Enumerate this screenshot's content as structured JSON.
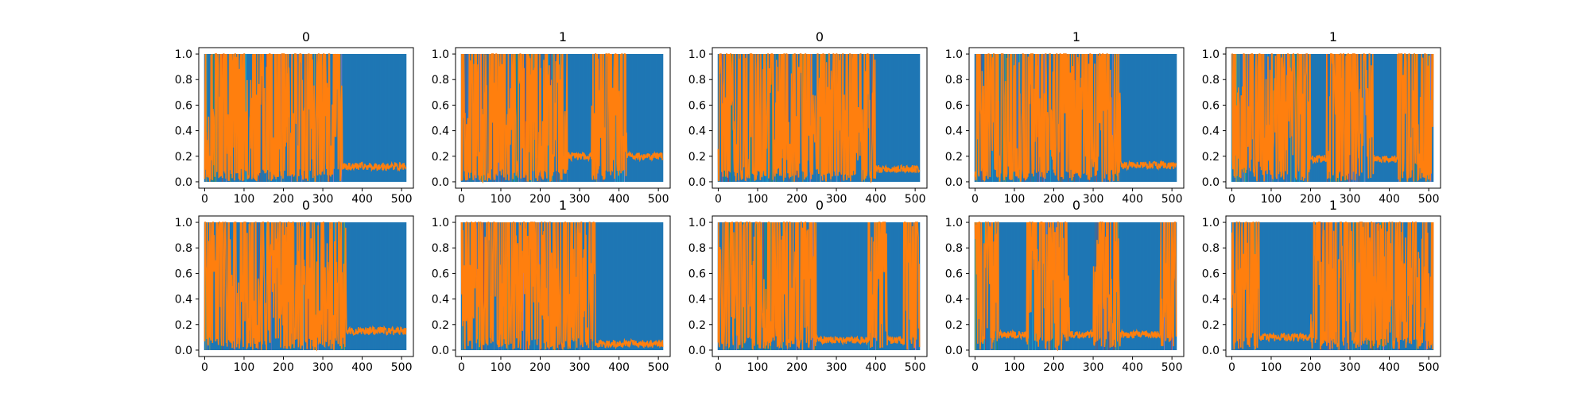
{
  "chart_data": [
    {
      "type": "line",
      "title": "0",
      "xlim": [
        -15,
        530
      ],
      "ylim": [
        -0.05,
        1.05
      ],
      "xticks": [
        0,
        100,
        200,
        300,
        400,
        500
      ],
      "yticks": [
        0.0,
        0.2,
        0.4,
        0.6,
        0.8,
        1.0
      ],
      "ytick_labels": [
        "0.0",
        "0.2",
        "0.4",
        "0.6",
        "0.8",
        "1.0"
      ],
      "n": 512,
      "blue_until": 350,
      "orange_low": 0.12,
      "seed": 11,
      "blue_blocks": []
    },
    {
      "type": "line",
      "title": "1",
      "xlim": [
        -15,
        530
      ],
      "ylim": [
        -0.05,
        1.05
      ],
      "xticks": [
        0,
        100,
        200,
        300,
        400,
        500
      ],
      "yticks": [
        0.0,
        0.2,
        0.4,
        0.6,
        0.8,
        1.0
      ],
      "ytick_labels": [
        "0.0",
        "0.2",
        "0.4",
        "0.6",
        "0.8",
        "1.0"
      ],
      "n": 512,
      "blue_until": 420,
      "orange_low": 0.2,
      "seed": 23,
      "blue_blocks": [
        [
          270,
          330
        ]
      ]
    },
    {
      "type": "line",
      "title": "0",
      "xlim": [
        -15,
        530
      ],
      "ylim": [
        -0.05,
        1.05
      ],
      "xticks": [
        0,
        100,
        200,
        300,
        400,
        500
      ],
      "yticks": [
        0.0,
        0.2,
        0.4,
        0.6,
        0.8,
        1.0
      ],
      "ytick_labels": [
        "0.0",
        "0.2",
        "0.4",
        "0.6",
        "0.8",
        "1.0"
      ],
      "n": 512,
      "blue_until": 400,
      "orange_low": 0.1,
      "seed": 37,
      "blue_blocks": []
    },
    {
      "type": "line",
      "title": "1",
      "xlim": [
        -15,
        530
      ],
      "ylim": [
        -0.05,
        1.05
      ],
      "xticks": [
        0,
        100,
        200,
        300,
        400,
        500
      ],
      "yticks": [
        0.0,
        0.2,
        0.4,
        0.6,
        0.8,
        1.0
      ],
      "ytick_labels": [
        "0.0",
        "0.2",
        "0.4",
        "0.6",
        "0.8",
        "1.0"
      ],
      "n": 512,
      "blue_until": 370,
      "orange_low": 0.13,
      "seed": 41,
      "blue_blocks": []
    },
    {
      "type": "line",
      "title": "1",
      "xlim": [
        -15,
        530
      ],
      "ylim": [
        -0.05,
        1.05
      ],
      "xticks": [
        0,
        100,
        200,
        300,
        400,
        500
      ],
      "yticks": [
        0.0,
        0.2,
        0.4,
        0.6,
        0.8,
        1.0
      ],
      "ytick_labels": [
        "0.0",
        "0.2",
        "0.4",
        "0.6",
        "0.8",
        "1.0"
      ],
      "n": 512,
      "blue_until": 999,
      "orange_low": 0.18,
      "seed": 53,
      "blue_blocks": [
        [
          200,
          240
        ],
        [
          360,
          420
        ]
      ]
    },
    {
      "type": "line",
      "title": "0",
      "xlim": [
        -15,
        530
      ],
      "ylim": [
        -0.05,
        1.05
      ],
      "xticks": [
        0,
        100,
        200,
        300,
        400,
        500
      ],
      "yticks": [
        0.0,
        0.2,
        0.4,
        0.6,
        0.8,
        1.0
      ],
      "ytick_labels": [
        "0.0",
        "0.2",
        "0.4",
        "0.6",
        "0.8",
        "1.0"
      ],
      "n": 512,
      "blue_until": 360,
      "orange_low": 0.15,
      "seed": 61,
      "blue_blocks": []
    },
    {
      "type": "line",
      "title": "1",
      "xlim": [
        -15,
        530
      ],
      "ylim": [
        -0.05,
        1.05
      ],
      "xticks": [
        0,
        100,
        200,
        300,
        400,
        500
      ],
      "yticks": [
        0.0,
        0.2,
        0.4,
        0.6,
        0.8,
        1.0
      ],
      "ytick_labels": [
        "0.0",
        "0.2",
        "0.4",
        "0.6",
        "0.8",
        "1.0"
      ],
      "n": 512,
      "blue_until": 340,
      "orange_low": 0.05,
      "seed": 73,
      "blue_blocks": []
    },
    {
      "type": "line",
      "title": "0",
      "xlim": [
        -15,
        530
      ],
      "ylim": [
        -0.05,
        1.05
      ],
      "xticks": [
        0,
        100,
        200,
        300,
        400,
        500
      ],
      "yticks": [
        0.0,
        0.2,
        0.4,
        0.6,
        0.8,
        1.0
      ],
      "ytick_labels": [
        "0.0",
        "0.2",
        "0.4",
        "0.6",
        "0.8",
        "1.0"
      ],
      "n": 512,
      "blue_until": 999,
      "orange_low": 0.08,
      "seed": 89,
      "blue_blocks": [
        [
          250,
          380
        ],
        [
          430,
          470
        ]
      ]
    },
    {
      "type": "line",
      "title": "0",
      "xlim": [
        -15,
        530
      ],
      "ylim": [
        -0.05,
        1.05
      ],
      "xticks": [
        0,
        100,
        200,
        300,
        400,
        500
      ],
      "yticks": [
        0.0,
        0.2,
        0.4,
        0.6,
        0.8,
        1.0
      ],
      "ytick_labels": [
        "0.0",
        "0.2",
        "0.4",
        "0.6",
        "0.8",
        "1.0"
      ],
      "n": 512,
      "blue_until": 999,
      "orange_low": 0.12,
      "seed": 97,
      "blue_blocks": [
        [
          60,
          130
        ],
        [
          240,
          300
        ],
        [
          370,
          470
        ]
      ]
    },
    {
      "type": "line",
      "title": "1",
      "xlim": [
        -15,
        530
      ],
      "ylim": [
        -0.05,
        1.05
      ],
      "xticks": [
        0,
        100,
        200,
        300,
        400,
        500
      ],
      "yticks": [
        0.0,
        0.2,
        0.4,
        0.6,
        0.8,
        1.0
      ],
      "ytick_labels": [
        "0.0",
        "0.2",
        "0.4",
        "0.6",
        "0.8",
        "1.0"
      ],
      "n": 512,
      "blue_until": 999,
      "orange_low": 0.1,
      "seed": 103,
      "blue_blocks": [
        [
          70,
          200
        ]
      ]
    }
  ],
  "colors": {
    "blue": "#1f77b4",
    "orange": "#ff7f0e",
    "cyan": "#17becf",
    "olive": "#bcbd22",
    "green": "#2ca02c",
    "purple": "#9467bd",
    "pink": "#e377c2",
    "gray": "#7f7f7f",
    "red": "#d62728",
    "brown": "#8c564b"
  }
}
